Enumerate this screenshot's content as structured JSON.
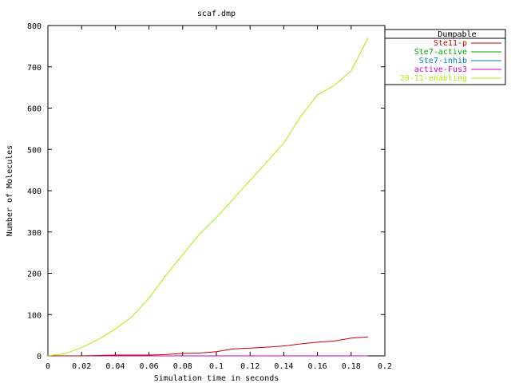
{
  "chart_data": {
    "type": "line",
    "title": "scaf.dmp",
    "xlabel": "Simulation time in seconds",
    "ylabel": "Number of Molecules",
    "xlim": [
      0,
      0.2
    ],
    "ylim": [
      0,
      800
    ],
    "xticks": [
      0,
      0.02,
      0.04,
      0.06,
      0.08,
      0.1,
      0.12,
      0.14,
      0.16,
      0.18,
      0.2
    ],
    "xtick_labels": [
      "0",
      "0.02",
      "0.04",
      "0.06",
      "0.08",
      "0.1",
      "0.12",
      "0.14",
      "0.16",
      "0.18",
      "0.2"
    ],
    "yticks": [
      0,
      100,
      200,
      300,
      400,
      500,
      600,
      700,
      800
    ],
    "ytick_labels": [
      "0",
      "100",
      "200",
      "300",
      "400",
      "500",
      "600",
      "700",
      "800"
    ],
    "grid": false,
    "legend": {
      "title": "Dumpable",
      "placement": "top-right outside"
    },
    "series": [
      {
        "name": "Ste11-p",
        "color": "#cc0000",
        "x": [
          0,
          0.01,
          0.02,
          0.03,
          0.04,
          0.05,
          0.06,
          0.07,
          0.08,
          0.09,
          0.1,
          0.11,
          0.12,
          0.13,
          0.14,
          0.15,
          0.16,
          0.17,
          0.18,
          0.19
        ],
        "y": [
          0,
          0,
          0,
          1,
          2,
          2,
          2,
          3,
          6,
          7,
          10,
          17,
          19,
          21,
          24,
          29,
          33,
          36,
          43,
          46
        ]
      },
      {
        "name": "Ste7-active",
        "color": "#00aa00",
        "x": [
          0,
          0.19
        ],
        "y": [
          0,
          0
        ]
      },
      {
        "name": "Ste7-inhib",
        "color": "#0077cc",
        "x": [
          0,
          0.19
        ],
        "y": [
          0,
          0
        ]
      },
      {
        "name": "active-Fus3",
        "color": "#cc00cc",
        "x": [
          0,
          0.19
        ],
        "y": [
          0,
          0
        ]
      },
      {
        "name": "20-11-enabling",
        "color": "#aaee00",
        "x": [
          0,
          0.01,
          0.02,
          0.03,
          0.04,
          0.05,
          0.06,
          0.07,
          0.08,
          0.09,
          0.1,
          0.11,
          0.12,
          0.13,
          0.14,
          0.15,
          0.16,
          0.17,
          0.18,
          0.19
        ],
        "y": [
          0,
          5,
          20,
          40,
          65,
          95,
          140,
          195,
          245,
          295,
          335,
          380,
          425,
          470,
          515,
          580,
          632,
          655,
          690,
          770
        ]
      }
    ]
  }
}
